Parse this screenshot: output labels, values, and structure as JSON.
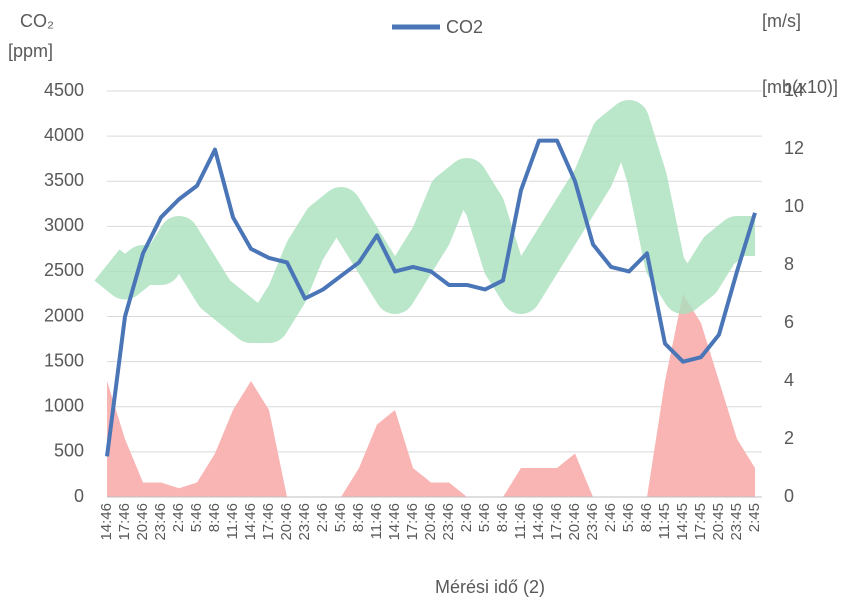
{
  "chart_data": {
    "type": "line",
    "y_title_lines": [
      "CO₂",
      "[ppm]"
    ],
    "y2_title_lines": [
      "[m/s]",
      "[mb(x10)]"
    ],
    "x_title": "Mérési idő (2)",
    "categories": [
      "14:46",
      "17:46",
      "20:46",
      "23:46",
      "2:46",
      "5:46",
      "8:46",
      "11:46",
      "14:46",
      "17:46",
      "20:46",
      "23:46",
      "2:46",
      "5:46",
      "8:46",
      "11:46",
      "14:46",
      "17:46",
      "20:46",
      "23:46",
      "2:46",
      "5:46",
      "8:46",
      "11:46",
      "14:46",
      "17:46",
      "20:46",
      "23:46",
      "2:46",
      "5:46",
      "8:46",
      "11:45",
      "14:45",
      "17:45",
      "20:45",
      "23:45",
      "2:45"
    ],
    "series": [
      {
        "color": "#f9b4b4",
        "axis": "y2",
        "kind": "area",
        "values": [
          4,
          2,
          0.5,
          0.5,
          0.3,
          0.5,
          1.5,
          3,
          4,
          3,
          0,
          0,
          0,
          0,
          1,
          2.5,
          3,
          1,
          0.5,
          0.5,
          0,
          0,
          0,
          1,
          1,
          1,
          1.5,
          0,
          0,
          0,
          0,
          4,
          7,
          6,
          4,
          2,
          1
        ]
      },
      {
        "color": "#a9e0bd",
        "axis": "y2",
        "kind": "band",
        "values": [
          8,
          7.5,
          8,
          8,
          9,
          8,
          7,
          6.5,
          6,
          6,
          7,
          8.5,
          9.5,
          10,
          9,
          8,
          7,
          8,
          9,
          10.5,
          11,
          10,
          8,
          7,
          8,
          9,
          10,
          11,
          12.5,
          13,
          11,
          8,
          7,
          7.5,
          8.5,
          9,
          9
        ]
      },
      {
        "name": "CO2",
        "color": "#4a76b8",
        "kind": "line",
        "values": [
          450,
          2000,
          2700,
          3100,
          3300,
          3450,
          3850,
          3100,
          2750,
          2650,
          2600,
          2200,
          2300,
          2450,
          2600,
          2900,
          2500,
          2550,
          2500,
          2350,
          2350,
          2300,
          2400,
          3400,
          3950,
          3950,
          3500,
          2800,
          2550,
          2500,
          2700,
          1700,
          1500,
          1550,
          1800,
          2500,
          3150
        ]
      }
    ],
    "ylim": [
      0,
      4500
    ],
    "yticks": [
      0,
      500,
      1000,
      1500,
      2000,
      2500,
      3000,
      3500,
      4000,
      4500
    ],
    "y2lim": [
      0,
      14
    ],
    "y2ticks": [
      0,
      2,
      4,
      6,
      8,
      10,
      12,
      14
    ],
    "grid": true
  }
}
